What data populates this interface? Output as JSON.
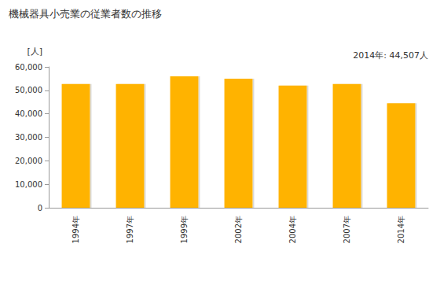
{
  "chart_data": {
    "type": "bar",
    "title": "機械器具小売業の従業者数の推移",
    "annotation": "2014年: 44,507人",
    "y_label": "[人]",
    "categories": [
      "1994年",
      "1997年",
      "1999年",
      "2002年",
      "2004年",
      "2007年",
      "2014年"
    ],
    "values": [
      52700,
      52700,
      56000,
      55000,
      52000,
      52700,
      44507
    ],
    "color": "#ffb300",
    "ylim": [
      0,
      60000
    ],
    "yticks": [
      0,
      {
        "value": 10000,
        "label": "10,000"
      },
      {
        "value": 20000,
        "label": "20,000"
      },
      {
        "value": 30000,
        "label": "30,000"
      },
      {
        "value": 40000,
        "label": "40,000"
      },
      {
        "value": 50000,
        "label": "50,000"
      },
      {
        "value": 60000,
        "label": "60,000"
      }
    ],
    "grid": false
  }
}
